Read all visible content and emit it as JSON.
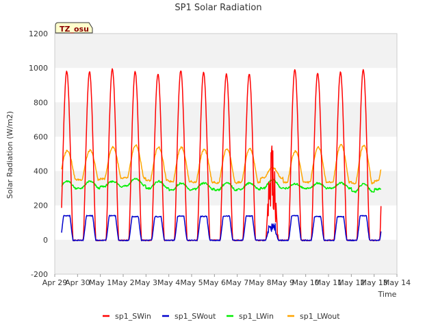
{
  "chart_data": {
    "type": "line",
    "title": "SP1 Solar Radiation",
    "xlabel": "Time",
    "ylabel": "Solar Radiation (W/m2)",
    "ylim": [
      -200,
      1200
    ],
    "yticks": [
      -200,
      0,
      200,
      400,
      600,
      800,
      1000,
      1200
    ],
    "xlim": [
      0,
      15
    ],
    "xticks": [
      {
        "v": 0,
        "label": "Apr 29"
      },
      {
        "v": 1,
        "label": "Apr 30"
      },
      {
        "v": 2,
        "label": "May 1"
      },
      {
        "v": 3,
        "label": "May 2"
      },
      {
        "v": 4,
        "label": "May 3"
      },
      {
        "v": 5,
        "label": "May 4"
      },
      {
        "v": 6,
        "label": "May 5"
      },
      {
        "v": 7,
        "label": "May 6"
      },
      {
        "v": 8,
        "label": "May 7"
      },
      {
        "v": 9,
        "label": "May 8"
      },
      {
        "v": 10,
        "label": "May 9"
      },
      {
        "v": 11,
        "label": "May 10"
      },
      {
        "v": 12,
        "label": "May 11"
      },
      {
        "v": 13,
        "label": "May 12"
      },
      {
        "v": 14,
        "label": "May 13"
      },
      {
        "v": 15,
        "label": "May 14"
      }
    ],
    "grid_bands": true,
    "legend_position": "bottom",
    "annotation": "TZ_osu",
    "days": [
      "Apr 30",
      "May 1",
      "May 2",
      "May 3",
      "May 4",
      "May 5",
      "May 6",
      "May 7",
      "May 8",
      "May 9",
      "May 10",
      "May 11",
      "May 12",
      "May 13"
    ],
    "series": [
      {
        "name": "sp1_SWin",
        "color": "#ff0000",
        "daily_peak": [
          980,
          995,
          980,
          965,
          985,
          975,
          965,
          965,
          600,
          990,
          970,
          975,
          990,
          1005
        ]
      },
      {
        "name": "sp1_SWout",
        "color": "#0000cc",
        "daily_peak": [
          140,
          140,
          135,
          135,
          138,
          136,
          138,
          138,
          95,
          140,
          135,
          135,
          140,
          150
        ]
      },
      {
        "name": "sp1_LWin",
        "color": "#00ee00",
        "daily_peak": [
          340,
          340,
          355,
          340,
          330,
          330,
          330,
          330,
          350,
          325,
          330,
          330,
          325,
          310
        ],
        "daily_min": [
          300,
          310,
          315,
          300,
          290,
          295,
          290,
          295,
          300,
          300,
          300,
          300,
          280,
          295
        ]
      },
      {
        "name": "sp1_LWout",
        "color": "#ffa500",
        "daily_peak": [
          520,
          540,
          550,
          540,
          540,
          525,
          530,
          530,
          420,
          515,
          540,
          555,
          550,
          530
        ],
        "daily_min": [
          350,
          355,
          360,
          345,
          340,
          335,
          330,
          335,
          360,
          335,
          335,
          335,
          330,
          345
        ]
      }
    ]
  }
}
